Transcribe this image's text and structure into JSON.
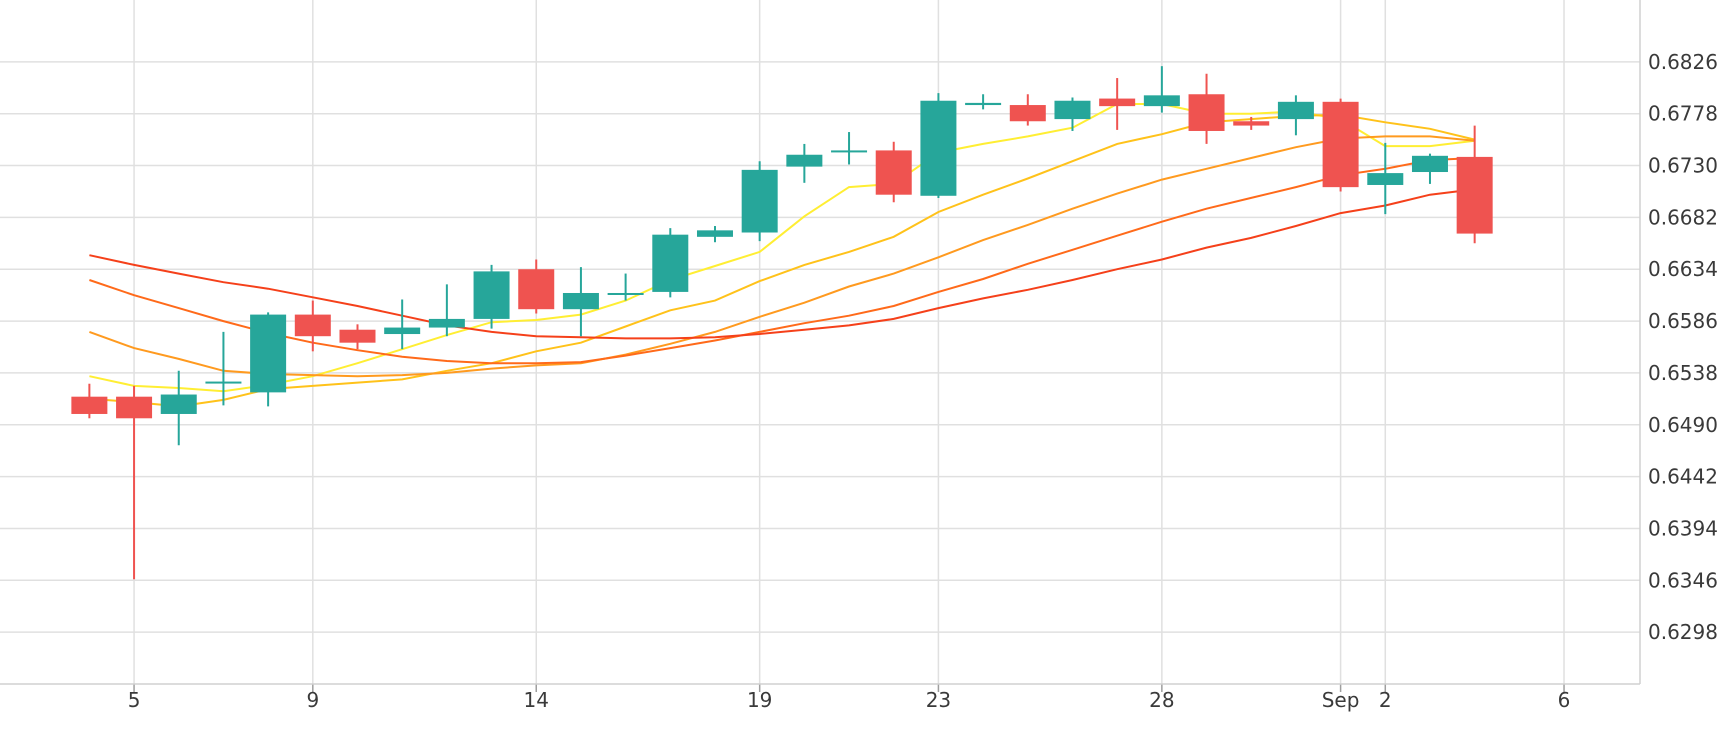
{
  "chart_data": {
    "type": "candlestick",
    "x_tick_labels": [
      {
        "day": 5,
        "label": "5"
      },
      {
        "day": 9,
        "label": "9"
      },
      {
        "day": 14,
        "label": "14"
      },
      {
        "day": 19,
        "label": "19"
      },
      {
        "day": 23,
        "label": "23"
      },
      {
        "day": 28,
        "label": "28"
      },
      {
        "day": 32,
        "label": "Sep"
      },
      {
        "day": 33,
        "label": "2"
      },
      {
        "day": 37,
        "label": "6"
      }
    ],
    "y_ticks": [
      "0.6826",
      "0.6778",
      "0.6730",
      "0.6682",
      "0.6634",
      "0.6586",
      "0.6538",
      "0.6490",
      "0.6442",
      "0.6394",
      "0.6346",
      "0.6298"
    ],
    "ylim": [
      0.625,
      0.6874
    ],
    "xlim": [
      2.0,
      38.7
    ],
    "grid": true,
    "y_axis_side": "right",
    "colors": {
      "up": "#26a69a",
      "down": "#ef5350",
      "grid": "#e0e0e0"
    },
    "candles": [
      {
        "day": 4,
        "open": 0.6516,
        "high": 0.6528,
        "low": 0.6496,
        "close": 0.65
      },
      {
        "day": 5,
        "open": 0.6516,
        "high": 0.6526,
        "low": 0.6347,
        "close": 0.6496
      },
      {
        "day": 6,
        "open": 0.65,
        "high": 0.654,
        "low": 0.6471,
        "close": 0.6518
      },
      {
        "day": 7,
        "open": 0.653,
        "high": 0.6576,
        "low": 0.6508,
        "close": 0.653
      },
      {
        "day": 8,
        "open": 0.652,
        "high": 0.6594,
        "low": 0.6507,
        "close": 0.6592
      },
      {
        "day": 9,
        "open": 0.6592,
        "high": 0.6605,
        "low": 0.6558,
        "close": 0.6572
      },
      {
        "day": 10,
        "open": 0.6578,
        "high": 0.6583,
        "low": 0.656,
        "close": 0.6566
      },
      {
        "day": 11,
        "open": 0.6574,
        "high": 0.6606,
        "low": 0.656,
        "close": 0.658
      },
      {
        "day": 12,
        "open": 0.658,
        "high": 0.662,
        "low": 0.6572,
        "close": 0.6588
      },
      {
        "day": 13,
        "open": 0.6588,
        "high": 0.6638,
        "low": 0.6579,
        "close": 0.6632
      },
      {
        "day": 14,
        "open": 0.6634,
        "high": 0.6643,
        "low": 0.6593,
        "close": 0.6597
      },
      {
        "day": 15,
        "open": 0.6597,
        "high": 0.6636,
        "low": 0.6572,
        "close": 0.6612
      },
      {
        "day": 16,
        "open": 0.6612,
        "high": 0.663,
        "low": 0.6605,
        "close": 0.6612
      },
      {
        "day": 17,
        "open": 0.6613,
        "high": 0.6672,
        "low": 0.6608,
        "close": 0.6666
      },
      {
        "day": 18,
        "open": 0.6664,
        "high": 0.6674,
        "low": 0.6659,
        "close": 0.667
      },
      {
        "day": 19,
        "open": 0.6668,
        "high": 0.6734,
        "low": 0.666,
        "close": 0.6726
      },
      {
        "day": 20,
        "open": 0.6729,
        "high": 0.675,
        "low": 0.6714,
        "close": 0.674
      },
      {
        "day": 21,
        "open": 0.6744,
        "high": 0.6761,
        "low": 0.6731,
        "close": 0.6744
      },
      {
        "day": 22,
        "open": 0.6744,
        "high": 0.6752,
        "low": 0.6696,
        "close": 0.6703
      },
      {
        "day": 23,
        "open": 0.6702,
        "high": 0.6797,
        "low": 0.67,
        "close": 0.679
      },
      {
        "day": 24,
        "open": 0.6786,
        "high": 0.6796,
        "low": 0.6782,
        "close": 0.6788
      },
      {
        "day": 25,
        "open": 0.6786,
        "high": 0.6796,
        "low": 0.6767,
        "close": 0.6771
      },
      {
        "day": 26,
        "open": 0.6773,
        "high": 0.6793,
        "low": 0.6762,
        "close": 0.679
      },
      {
        "day": 27,
        "open": 0.6792,
        "high": 0.6811,
        "low": 0.6763,
        "close": 0.6785
      },
      {
        "day": 28,
        "open": 0.6785,
        "high": 0.6822,
        "low": 0.6779,
        "close": 0.6795
      },
      {
        "day": 29,
        "open": 0.6796,
        "high": 0.6815,
        "low": 0.675,
        "close": 0.6762
      },
      {
        "day": 30,
        "open": 0.6771,
        "high": 0.6775,
        "low": 0.6763,
        "close": 0.6767
      },
      {
        "day": 31,
        "open": 0.6773,
        "high": 0.6795,
        "low": 0.6758,
        "close": 0.6789
      },
      {
        "day": 32,
        "open": 0.6789,
        "high": 0.6792,
        "low": 0.6706,
        "close": 0.671
      },
      {
        "day": 33,
        "open": 0.6712,
        "high": 0.6751,
        "low": 0.6685,
        "close": 0.6723
      },
      {
        "day": 34,
        "open": 0.6724,
        "high": 0.6741,
        "low": 0.6713,
        "close": 0.6739
      },
      {
        "day": 35,
        "open": 0.6738,
        "high": 0.6767,
        "low": 0.6658,
        "close": 0.6667
      }
    ],
    "moving_averages": [
      {
        "color": "#ffee33",
        "points": [
          [
            4,
            0.6535
          ],
          [
            5,
            0.6526
          ],
          [
            6,
            0.6524
          ],
          [
            7,
            0.6521
          ],
          [
            8,
            0.6527
          ],
          [
            9,
            0.6535
          ],
          [
            10,
            0.6547
          ],
          [
            11,
            0.656
          ],
          [
            12,
            0.6573
          ],
          [
            13,
            0.6585
          ],
          [
            14,
            0.6587
          ],
          [
            15,
            0.6592
          ],
          [
            16,
            0.6605
          ],
          [
            17,
            0.6624
          ],
          [
            18,
            0.6637
          ],
          [
            19,
            0.665
          ],
          [
            20,
            0.6683
          ],
          [
            21,
            0.671
          ],
          [
            22,
            0.6713
          ],
          [
            23,
            0.6742
          ],
          [
            24,
            0.675
          ],
          [
            25,
            0.6757
          ],
          [
            26,
            0.6765
          ],
          [
            27,
            0.6787
          ],
          [
            28,
            0.6787
          ],
          [
            29,
            0.6778
          ],
          [
            30,
            0.6778
          ],
          [
            31,
            0.678
          ],
          [
            32,
            0.6773
          ],
          [
            33,
            0.6748
          ],
          [
            34,
            0.6748
          ],
          [
            35,
            0.6753
          ]
        ]
      },
      {
        "color": "#ffc21a",
        "points": [
          [
            4,
            0.6514
          ],
          [
            5,
            0.6511
          ],
          [
            6,
            0.6507
          ],
          [
            7,
            0.6513
          ],
          [
            8,
            0.6523
          ],
          [
            9,
            0.6526
          ],
          [
            10,
            0.6529
          ],
          [
            11,
            0.6532
          ],
          [
            12,
            0.654
          ],
          [
            13,
            0.6547
          ],
          [
            14,
            0.6558
          ],
          [
            15,
            0.6566
          ],
          [
            16,
            0.6581
          ],
          [
            17,
            0.6596
          ],
          [
            18,
            0.6605
          ],
          [
            19,
            0.6623
          ],
          [
            20,
            0.6638
          ],
          [
            21,
            0.665
          ],
          [
            22,
            0.6664
          ],
          [
            23,
            0.6687
          ],
          [
            24,
            0.6703
          ],
          [
            25,
            0.6718
          ],
          [
            26,
            0.6734
          ],
          [
            27,
            0.675
          ],
          [
            28,
            0.6759
          ],
          [
            29,
            0.677
          ],
          [
            30,
            0.6773
          ],
          [
            31,
            0.6776
          ],
          [
            32,
            0.6777
          ],
          [
            33,
            0.677
          ],
          [
            34,
            0.6764
          ],
          [
            35,
            0.6754
          ]
        ]
      },
      {
        "color": "#ff9a1f",
        "points": [
          [
            4,
            0.6576
          ],
          [
            5,
            0.6561
          ],
          [
            6,
            0.6551
          ],
          [
            7,
            0.654
          ],
          [
            8,
            0.6537
          ],
          [
            9,
            0.6536
          ],
          [
            10,
            0.6535
          ],
          [
            11,
            0.6536
          ],
          [
            12,
            0.6538
          ],
          [
            13,
            0.6542
          ],
          [
            14,
            0.6545
          ],
          [
            15,
            0.6547
          ],
          [
            16,
            0.6555
          ],
          [
            17,
            0.6565
          ],
          [
            18,
            0.6576
          ],
          [
            19,
            0.659
          ],
          [
            20,
            0.6603
          ],
          [
            21,
            0.6618
          ],
          [
            22,
            0.663
          ],
          [
            23,
            0.6645
          ],
          [
            24,
            0.6661
          ],
          [
            25,
            0.6675
          ],
          [
            26,
            0.669
          ],
          [
            27,
            0.6704
          ],
          [
            28,
            0.6717
          ],
          [
            29,
            0.6727
          ],
          [
            30,
            0.6737
          ],
          [
            31,
            0.6747
          ],
          [
            32,
            0.6755
          ],
          [
            33,
            0.6757
          ],
          [
            34,
            0.6757
          ],
          [
            35,
            0.6753
          ]
        ]
      },
      {
        "color": "#ff6a1a",
        "points": [
          [
            4,
            0.6624
          ],
          [
            5,
            0.661
          ],
          [
            6,
            0.6598
          ],
          [
            7,
            0.6586
          ],
          [
            8,
            0.6575
          ],
          [
            9,
            0.6566
          ],
          [
            10,
            0.6559
          ],
          [
            11,
            0.6553
          ],
          [
            12,
            0.6549
          ],
          [
            13,
            0.6547
          ],
          [
            14,
            0.6547
          ],
          [
            15,
            0.6548
          ],
          [
            16,
            0.6554
          ],
          [
            17,
            0.6561
          ],
          [
            18,
            0.6568
          ],
          [
            19,
            0.6576
          ],
          [
            20,
            0.6584
          ],
          [
            21,
            0.6591
          ],
          [
            22,
            0.66
          ],
          [
            23,
            0.6613
          ],
          [
            24,
            0.6625
          ],
          [
            25,
            0.6639
          ],
          [
            26,
            0.6652
          ],
          [
            27,
            0.6665
          ],
          [
            28,
            0.6678
          ],
          [
            29,
            0.669
          ],
          [
            30,
            0.67
          ],
          [
            31,
            0.671
          ],
          [
            32,
            0.6721
          ],
          [
            33,
            0.6727
          ],
          [
            34,
            0.6735
          ],
          [
            35,
            0.6737
          ]
        ]
      },
      {
        "color": "#f5401a",
        "points": [
          [
            4,
            0.6647
          ],
          [
            5,
            0.6638
          ],
          [
            6,
            0.663
          ],
          [
            7,
            0.6622
          ],
          [
            8,
            0.6616
          ],
          [
            9,
            0.6608
          ],
          [
            10,
            0.66
          ],
          [
            11,
            0.6591
          ],
          [
            12,
            0.6582
          ],
          [
            13,
            0.6576
          ],
          [
            14,
            0.6572
          ],
          [
            15,
            0.6571
          ],
          [
            16,
            0.657
          ],
          [
            17,
            0.657
          ],
          [
            18,
            0.6571
          ],
          [
            19,
            0.6574
          ],
          [
            20,
            0.6578
          ],
          [
            21,
            0.6582
          ],
          [
            22,
            0.6588
          ],
          [
            23,
            0.6598
          ],
          [
            24,
            0.6607
          ],
          [
            25,
            0.6615
          ],
          [
            26,
            0.6624
          ],
          [
            27,
            0.6634
          ],
          [
            28,
            0.6643
          ],
          [
            29,
            0.6654
          ],
          [
            30,
            0.6663
          ],
          [
            31,
            0.6674
          ],
          [
            32,
            0.6686
          ],
          [
            33,
            0.6693
          ],
          [
            34,
            0.6703
          ],
          [
            35,
            0.6708
          ]
        ]
      }
    ]
  }
}
